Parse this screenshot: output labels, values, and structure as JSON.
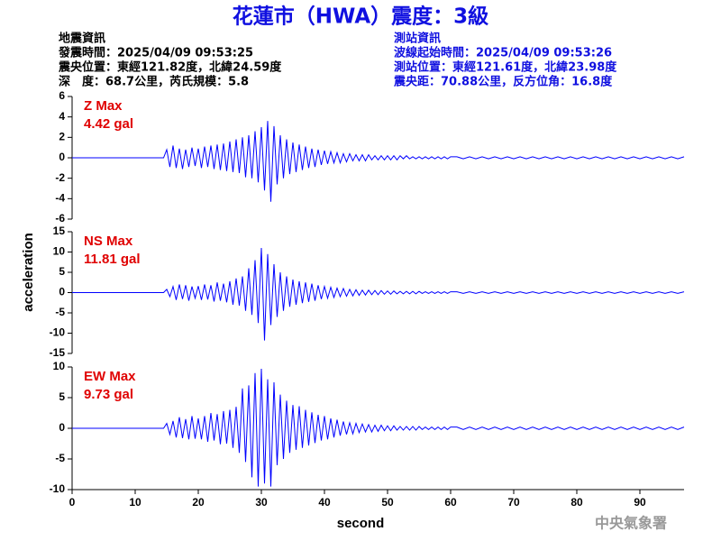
{
  "title": "花蓮市（HWA）震度：3級",
  "info_left": [
    "地震資訊",
    "發震時間：2025/04/09 09:53:25",
    "震央位置：東經121.82度，北緯24.59度",
    "深　度：68.7公里，芮氏規模：5.8"
  ],
  "info_right": [
    "測站資訊",
    "波線起始時間：2025/04/09 09:53:26",
    "測站位置：東經121.61度，北緯23.98度",
    "震央距：70.88公里，反方位角：16.8度"
  ],
  "y_label": "acceleration",
  "watermark": "中央氣象署",
  "chart_data": [
    {
      "type": "line",
      "annotation": [
        "Z Max",
        "4.42 gal"
      ],
      "x": [
        0,
        14.5,
        15,
        15.5,
        16,
        16.5,
        17,
        17.5,
        18,
        18.5,
        19,
        19.5,
        20,
        20.5,
        21,
        21.5,
        22,
        22.5,
        23,
        23.5,
        24,
        24.5,
        25,
        25.5,
        26,
        26.5,
        27,
        27.5,
        28,
        28.5,
        29,
        29.5,
        30,
        30.5,
        31,
        31.5,
        32,
        32.5,
        33,
        33.5,
        34,
        34.5,
        35,
        35.5,
        36,
        36.5,
        37,
        37.5,
        38,
        38.5,
        39,
        39.5,
        40,
        40.5,
        41,
        41.5,
        42,
        42.5,
        43,
        43.5,
        44,
        44.5,
        45,
        45.5,
        46,
        46.5,
        47,
        47.5,
        48,
        48.5,
        49,
        49.5,
        50,
        50.5,
        51,
        51.5,
        52,
        52.5,
        53,
        53.5,
        54,
        54.5,
        55,
        55.5,
        56,
        56.5,
        57,
        57.5,
        58,
        58.5,
        59,
        59.5,
        60,
        61,
        62,
        63,
        64,
        65,
        66,
        67,
        68,
        69,
        70,
        71,
        72,
        73,
        74,
        75,
        76,
        77,
        78,
        79,
        80,
        81,
        82,
        83,
        84,
        85,
        86,
        87,
        88,
        89,
        90,
        91,
        92,
        93,
        94,
        95,
        96,
        97
      ],
      "series": [
        {
          "color": "#0000ff",
          "values": [
            0,
            0,
            0.8,
            -0.9,
            1.2,
            -1.0,
            0.9,
            -1.1,
            0.8,
            -0.9,
            1.0,
            -0.8,
            0.9,
            -1.0,
            1.1,
            -0.9,
            1.2,
            -1.1,
            1.3,
            -1.2,
            1.4,
            -1.3,
            1.6,
            -1.4,
            1.8,
            -1.5,
            2.0,
            -1.9,
            2.2,
            -2.0,
            2.6,
            -2.4,
            3.0,
            -3.2,
            3.6,
            -4.3,
            3.1,
            -2.6,
            2.2,
            -2.0,
            1.8,
            -1.6,
            1.5,
            -1.4,
            1.3,
            -1.2,
            1.1,
            -1.0,
            0.9,
            -0.9,
            0.8,
            -0.7,
            0.7,
            -0.6,
            0.6,
            -0.5,
            0.5,
            -0.5,
            0.4,
            -0.4,
            0.4,
            -0.3,
            0.3,
            -0.3,
            0.3,
            -0.3,
            0.3,
            -0.2,
            0.2,
            -0.2,
            0.2,
            -0.2,
            0.2,
            -0.2,
            0.2,
            -0.2,
            0.2,
            -0.1,
            0.2,
            -0.1,
            0.1,
            -0.1,
            0.1,
            -0.1,
            0.1,
            -0.1,
            0.1,
            -0.1,
            0.1,
            -0.1,
            0.1,
            -0.1,
            0.1,
            0.1,
            -0.1,
            0.1,
            -0.1,
            0.1,
            -0.1,
            0.1,
            -0.1,
            0.1,
            -0.1,
            0.1,
            -0.1,
            0.1,
            -0.1,
            0.1,
            -0.1,
            0.1,
            -0.1,
            0.1,
            -0.1,
            0.1,
            -0.1,
            0.1,
            -0.1,
            0.1,
            -0.1,
            0.1,
            -0.1,
            0.1,
            -0.1,
            0.1,
            -0.1,
            0.1,
            -0.1,
            0.1,
            -0.1,
            0.1
          ]
        }
      ],
      "xlim": [
        0,
        97
      ],
      "ylim": [
        -6,
        6
      ],
      "yticks": [
        -6,
        -4,
        -2,
        0,
        2,
        4,
        6
      ]
    },
    {
      "type": "line",
      "annotation": [
        "NS Max",
        "11.81 gal"
      ],
      "x": [
        0,
        14.5,
        15,
        15.5,
        16,
        16.5,
        17,
        17.5,
        18,
        18.5,
        19,
        19.5,
        20,
        20.5,
        21,
        21.5,
        22,
        22.5,
        23,
        23.5,
        24,
        24.5,
        25,
        25.5,
        26,
        26.5,
        27,
        27.5,
        28,
        28.5,
        29,
        29.5,
        30,
        30.5,
        31,
        31.5,
        32,
        32.5,
        33,
        33.5,
        34,
        34.5,
        35,
        35.5,
        36,
        36.5,
        37,
        37.5,
        38,
        38.5,
        39,
        39.5,
        40,
        40.5,
        41,
        41.5,
        42,
        42.5,
        43,
        43.5,
        44,
        44.5,
        45,
        45.5,
        46,
        46.5,
        47,
        47.5,
        48,
        48.5,
        49,
        49.5,
        50,
        50.5,
        51,
        51.5,
        52,
        52.5,
        53,
        53.5,
        54,
        54.5,
        55,
        55.5,
        56,
        56.5,
        57,
        57.5,
        58,
        58.5,
        59,
        59.5,
        60,
        61,
        62,
        63,
        64,
        65,
        66,
        67,
        68,
        69,
        70,
        71,
        72,
        73,
        74,
        75,
        76,
        77,
        78,
        79,
        80,
        81,
        82,
        83,
        84,
        85,
        86,
        87,
        88,
        89,
        90,
        91,
        92,
        93,
        94,
        95,
        96,
        97
      ],
      "series": [
        {
          "color": "#0000ff",
          "values": [
            0,
            0,
            0.8,
            -1.0,
            1.5,
            -1.8,
            2.0,
            -1.6,
            1.8,
            -2.0,
            1.5,
            -1.4,
            1.6,
            -1.8,
            2.0,
            -1.7,
            1.8,
            -2.2,
            2.5,
            -2.0,
            2.2,
            -2.4,
            2.8,
            -3.0,
            3.5,
            -3.2,
            4.0,
            -4.5,
            6.0,
            -5.5,
            8.0,
            -7.5,
            11.0,
            -11.8,
            9.5,
            -8.0,
            7.0,
            -6.0,
            5.0,
            -4.5,
            4.0,
            -3.5,
            3.2,
            -3.0,
            2.8,
            -2.6,
            2.5,
            -2.3,
            2.2,
            -2.0,
            1.8,
            -1.6,
            1.5,
            -1.4,
            1.3,
            -1.2,
            1.1,
            -1.0,
            1.0,
            -0.9,
            0.8,
            -0.8,
            0.7,
            -0.7,
            0.6,
            -0.6,
            0.6,
            -0.5,
            0.5,
            -0.5,
            0.5,
            -0.4,
            0.4,
            -0.4,
            0.4,
            -0.3,
            0.3,
            -0.3,
            0.3,
            -0.3,
            0.3,
            -0.3,
            0.3,
            -0.2,
            0.2,
            -0.2,
            0.2,
            -0.2,
            0.2,
            -0.2,
            0.2,
            -0.2,
            0.2,
            0.2,
            -0.2,
            0.2,
            -0.2,
            0.2,
            -0.2,
            0.2,
            -0.2,
            0.2,
            -0.2,
            0.2,
            -0.2,
            0.2,
            -0.2,
            0.2,
            -0.2,
            0.2,
            -0.2,
            0.2,
            -0.2,
            0.2,
            -0.2,
            0.2,
            -0.2,
            0.2,
            -0.2,
            0.2,
            -0.2,
            0.2,
            -0.2,
            0.2,
            -0.2,
            0.2,
            -0.2,
            0.2,
            -0.2,
            0.2
          ]
        }
      ],
      "xlim": [
        0,
        97
      ],
      "ylim": [
        -15,
        15
      ],
      "yticks": [
        -15,
        -10,
        -5,
        0,
        5,
        10,
        15
      ]
    },
    {
      "type": "line",
      "annotation": [
        "EW Max",
        "9.73 gal"
      ],
      "x": [
        0,
        14.5,
        15,
        15.5,
        16,
        16.5,
        17,
        17.5,
        18,
        18.5,
        19,
        19.5,
        20,
        20.5,
        21,
        21.5,
        22,
        22.5,
        23,
        23.5,
        24,
        24.5,
        25,
        25.5,
        26,
        26.5,
        27,
        27.5,
        28,
        28.5,
        29,
        29.5,
        30,
        30.5,
        31,
        31.5,
        32,
        32.5,
        33,
        33.5,
        34,
        34.5,
        35,
        35.5,
        36,
        36.5,
        37,
        37.5,
        38,
        38.5,
        39,
        39.5,
        40,
        40.5,
        41,
        41.5,
        42,
        42.5,
        43,
        43.5,
        44,
        44.5,
        45,
        45.5,
        46,
        46.5,
        47,
        47.5,
        48,
        48.5,
        49,
        49.5,
        50,
        50.5,
        51,
        51.5,
        52,
        52.5,
        53,
        53.5,
        54,
        54.5,
        55,
        55.5,
        56,
        56.5,
        57,
        57.5,
        58,
        58.5,
        59,
        59.5,
        60,
        61,
        62,
        63,
        64,
        65,
        66,
        67,
        68,
        69,
        70,
        71,
        72,
        73,
        74,
        75,
        76,
        77,
        78,
        79,
        80,
        81,
        82,
        83,
        84,
        85,
        86,
        87,
        88,
        89,
        90,
        91,
        92,
        93,
        94,
        95,
        96,
        97
      ],
      "series": [
        {
          "color": "#0000ff",
          "values": [
            0,
            0,
            0.8,
            -1.0,
            1.2,
            -1.5,
            1.8,
            -1.6,
            1.5,
            -1.8,
            2.0,
            -1.7,
            1.6,
            -1.8,
            2.0,
            -2.2,
            2.5,
            -2.0,
            2.3,
            -2.6,
            2.8,
            -2.5,
            3.0,
            -3.2,
            3.5,
            -4.0,
            6.5,
            -5.5,
            7.0,
            -8.0,
            9.0,
            -9.5,
            9.7,
            -9.0,
            8.0,
            -9.5,
            7.5,
            -6.0,
            5.5,
            -5.0,
            4.5,
            -4.0,
            3.8,
            -3.5,
            3.6,
            -3.2,
            3.0,
            -2.8,
            2.6,
            -2.4,
            2.2,
            -2.0,
            2.0,
            -1.8,
            1.6,
            -1.5,
            1.4,
            -1.2,
            1.1,
            -1.0,
            0.9,
            -0.9,
            0.8,
            -0.7,
            0.7,
            -0.6,
            0.6,
            -0.6,
            0.5,
            -0.5,
            0.5,
            -0.4,
            0.4,
            -0.4,
            0.4,
            -0.3,
            0.3,
            -0.3,
            0.3,
            -0.3,
            0.3,
            -0.3,
            0.3,
            -0.2,
            0.2,
            -0.2,
            0.2,
            -0.2,
            0.2,
            -0.2,
            0.2,
            -0.2,
            0.2,
            0.2,
            -0.2,
            0.2,
            -0.2,
            0.2,
            -0.2,
            0.2,
            -0.2,
            0.2,
            -0.2,
            0.2,
            -0.2,
            0.2,
            -0.2,
            0.2,
            -0.2,
            0.2,
            -0.2,
            0.2,
            -0.2,
            0.2,
            -0.2,
            0.2,
            -0.2,
            0.2,
            -0.2,
            0.2,
            -0.2,
            0.2,
            -0.2,
            0.2,
            -0.2,
            0.2,
            -0.2,
            0.2,
            -0.2,
            0.2
          ]
        }
      ],
      "xlim": [
        0,
        97
      ],
      "ylim": [
        -10,
        10
      ],
      "yticks": [
        -10,
        -5,
        0,
        5,
        10
      ],
      "xticks": [
        0,
        10,
        20,
        30,
        40,
        50,
        60,
        70,
        80,
        90
      ],
      "x_label": "second"
    }
  ]
}
